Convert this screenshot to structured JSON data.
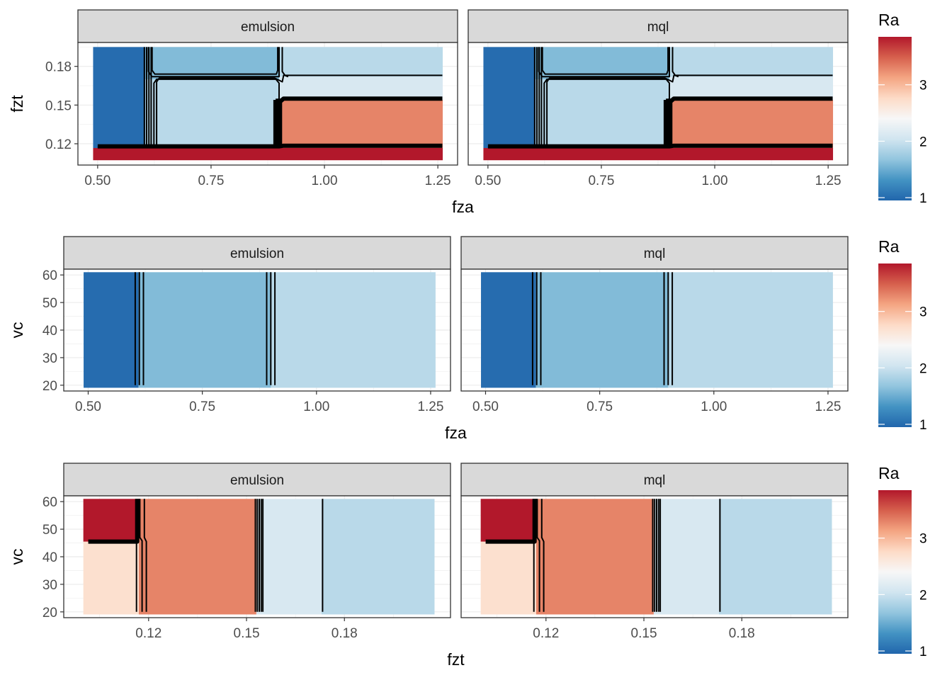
{
  "chart_data": [
    {
      "type": "heatmap",
      "xlabel": "fza",
      "ylabel": "fzt",
      "facets": [
        "emulsion",
        "mql"
      ],
      "xlim": [
        0.4565,
        1.2935
      ],
      "ylim": [
        0.1035,
        0.1985
      ],
      "x_ticks": [
        0.5,
        0.75,
        1.0,
        1.25
      ],
      "x_tick_labels": [
        "0.50",
        "0.75",
        "1.00",
        "1.25"
      ],
      "y_ticks": [
        0.12,
        0.15,
        0.18
      ],
      "y_tick_labels": [
        "0.12",
        "0.15",
        "0.18"
      ],
      "cells": [
        {
          "x": [
            0.49,
            0.605
          ],
          "y": [
            0.1167,
            0.195
          ],
          "Ra": 1.0
        },
        {
          "x": [
            0.605,
            0.9
          ],
          "y": [
            0.17,
            0.195
          ],
          "Ra": 1.6
        },
        {
          "x": [
            0.605,
            0.9
          ],
          "y": [
            0.1167,
            0.17
          ],
          "Ra": 1.9
        },
        {
          "x": [
            0.9,
            1.26
          ],
          "y": [
            0.172,
            0.195
          ],
          "Ra": 1.9
        },
        {
          "x": [
            0.9,
            1.26
          ],
          "y": [
            0.154,
            0.172
          ],
          "Ra": 2.1
        },
        {
          "x": [
            0.9,
            1.26
          ],
          "y": [
            0.1167,
            0.154
          ],
          "Ra": 3.3
        },
        {
          "x": [
            0.49,
            1.26
          ],
          "y": [
            0.1075,
            0.1167
          ],
          "Ra": 3.85
        }
      ],
      "contours": [
        {
          "points": [
            [
              0.603,
              0.195
            ],
            [
              0.603,
              0.117
            ]
          ],
          "width": 2
        },
        {
          "points": [
            [
              0.608,
              0.195
            ],
            [
              0.608,
              0.117
            ]
          ],
          "width": 2
        },
        {
          "points": [
            [
              0.613,
              0.195
            ],
            [
              0.613,
              0.117
            ]
          ],
          "width": 2
        },
        {
          "points": [
            [
              0.618,
              0.195
            ],
            [
              0.618,
              0.117
            ]
          ],
          "width": 2
        },
        {
          "points": [
            [
              0.612,
              0.195
            ],
            [
              0.612,
              0.176
            ],
            [
              0.62,
              0.172
            ],
            [
              0.9,
              0.172
            ],
            [
              0.9,
              0.195
            ]
          ],
          "width": 2
        },
        {
          "points": [
            [
              0.62,
              0.195
            ],
            [
              0.62,
              0.177
            ],
            [
              0.626,
              0.174
            ],
            [
              0.894,
              0.174
            ],
            [
              0.897,
              0.177
            ],
            [
              0.897,
              0.195
            ]
          ],
          "width": 2
        },
        {
          "points": [
            [
              0.624,
              0.119
            ],
            [
              0.624,
              0.167
            ],
            [
              0.63,
              0.17
            ],
            [
              0.893,
              0.17
            ],
            [
              0.9,
              0.167
            ],
            [
              0.9,
              0.118
            ]
          ],
          "width": 2
        },
        {
          "points": [
            [
              0.63,
              0.117
            ],
            [
              0.63,
              0.168
            ],
            [
              0.636,
              0.171
            ],
            [
              0.89,
              0.171
            ],
            [
              0.907,
              0.168
            ],
            [
              0.91,
              0.173
            ],
            [
              1.26,
              0.173
            ]
          ],
          "width": 2
        },
        {
          "points": [
            [
              0.907,
              0.195
            ],
            [
              0.907,
              0.176
            ],
            [
              0.913,
              0.173
            ],
            [
              0.92,
              0.172
            ]
          ],
          "width": 2
        },
        {
          "points": [
            [
              0.892,
              0.154
            ],
            [
              0.892,
              0.118
            ]
          ],
          "width": 6
        },
        {
          "points": [
            [
              0.897,
              0.155
            ],
            [
              0.897,
              0.118
            ]
          ],
          "width": 6
        },
        {
          "points": [
            [
              0.902,
              0.155
            ],
            [
              0.902,
              0.118
            ]
          ],
          "width": 6
        },
        {
          "points": [
            [
              0.9,
              0.152
            ],
            [
              0.91,
              0.155
            ],
            [
              1.26,
              0.155
            ]
          ],
          "width": 6
        },
        {
          "points": [
            [
              0.5,
              0.118
            ],
            [
              0.9,
              0.118
            ],
            [
              0.91,
              0.1185
            ],
            [
              1.26,
              0.1185
            ]
          ],
          "width": 6
        },
        {
          "points": [
            [
              0.5,
              0.1175
            ],
            [
              0.9,
              0.1175
            ],
            [
              1.26,
              0.1175
            ]
          ],
          "width": 2
        }
      ]
    },
    {
      "type": "heatmap",
      "xlabel": "fza",
      "ylabel": "vc",
      "facets": [
        "emulsion",
        "mql"
      ],
      "xlim": [
        0.4465,
        1.2935
      ],
      "ylim": [
        17.9,
        62.1
      ],
      "x_ticks": [
        0.5,
        0.75,
        1.0,
        1.25
      ],
      "x_tick_labels": [
        "0.50",
        "0.75",
        "1.00",
        "1.25"
      ],
      "y_ticks": [
        20,
        30,
        40,
        50,
        60
      ],
      "y_tick_labels": [
        "20",
        "30",
        "40",
        "50",
        "60"
      ],
      "cells": [
        {
          "x": [
            0.49,
            0.61
          ],
          "y": [
            19.2,
            61.0
          ],
          "Ra": 1.0
        },
        {
          "x": [
            0.61,
            0.9
          ],
          "y": [
            19.2,
            61.0
          ],
          "Ra": 1.6
        },
        {
          "x": [
            0.9,
            1.26
          ],
          "y": [
            19.2,
            61.0
          ],
          "Ra": 1.9
        }
      ],
      "contours": [
        {
          "points": [
            [
              0.603,
              61.0
            ],
            [
              0.603,
              20.0
            ]
          ],
          "width": 2
        },
        {
          "points": [
            [
              0.612,
              61.0
            ],
            [
              0.612,
              20.0
            ]
          ],
          "width": 2
        },
        {
          "points": [
            [
              0.621,
              61.0
            ],
            [
              0.621,
              20.0
            ]
          ],
          "width": 2
        },
        {
          "points": [
            [
              0.891,
              61.0
            ],
            [
              0.891,
              20.0
            ]
          ],
          "width": 2
        },
        {
          "points": [
            [
              0.9,
              61.0
            ],
            [
              0.9,
              20.0
            ]
          ],
          "width": 2
        },
        {
          "points": [
            [
              0.909,
              61.0
            ],
            [
              0.909,
              20.0
            ]
          ],
          "width": 2
        }
      ]
    },
    {
      "type": "heatmap",
      "xlabel": "fzt",
      "ylabel": "vc",
      "facets": [
        "emulsion",
        "mql"
      ],
      "xlim": [
        0.094,
        0.2125
      ],
      "ylim": [
        17.9,
        62.1
      ],
      "x_ticks": [
        0.12,
        0.15,
        0.18
      ],
      "x_tick_labels": [
        "0.12",
        "0.15",
        "0.18"
      ],
      "y_ticks": [
        20,
        30,
        40,
        50,
        60
      ],
      "y_tick_labels": [
        "20",
        "30",
        "40",
        "50",
        "60"
      ],
      "cells": [
        {
          "x": [
            0.1,
            0.117
          ],
          "y": [
            45.5,
            61.0
          ],
          "Ra": 3.85
        },
        {
          "x": [
            0.1,
            0.117
          ],
          "y": [
            19.2,
            45.5
          ],
          "Ra": 2.7
        },
        {
          "x": [
            0.117,
            0.153
          ],
          "y": [
            19.2,
            61.0
          ],
          "Ra": 3.3
        },
        {
          "x": [
            0.153,
            0.173
          ],
          "y": [
            19.2,
            61.0
          ],
          "Ra": 2.1
        },
        {
          "x": [
            0.173,
            0.2075
          ],
          "y": [
            19.2,
            61.0
          ],
          "Ra": 1.9
        }
      ],
      "contours": [
        {
          "points": [
            [
              0.1015,
              45.5
            ],
            [
              0.1165,
              45.5
            ],
            [
              0.1165,
              61.0
            ]
          ],
          "width": 6
        },
        {
          "points": [
            [
              0.1163,
              45.0
            ],
            [
              0.1163,
              20.0
            ]
          ],
          "width": 2
        },
        {
          "points": [
            [
              0.1173,
              61.0
            ],
            [
              0.1173,
              47.0
            ],
            [
              0.118,
              45.8
            ],
            [
              0.118,
              20.0
            ]
          ],
          "width": 2
        },
        {
          "points": [
            [
              0.1187,
              61.0
            ],
            [
              0.1187,
              47.0
            ],
            [
              0.1193,
              45.5
            ],
            [
              0.1193,
              20.0
            ]
          ],
          "width": 2
        },
        {
          "points": [
            [
              0.1527,
              61.0
            ],
            [
              0.1527,
              20.0
            ]
          ],
          "width": 2
        },
        {
          "points": [
            [
              0.1533,
              61.0
            ],
            [
              0.1533,
              20.0
            ]
          ],
          "width": 2
        },
        {
          "points": [
            [
              0.1539,
              61.0
            ],
            [
              0.1539,
              20.0
            ]
          ],
          "width": 2
        },
        {
          "points": [
            [
              0.1545,
              61.0
            ],
            [
              0.1545,
              20.0
            ]
          ],
          "width": 2
        },
        {
          "points": [
            [
              0.155,
              61.0
            ],
            [
              0.155,
              20.0
            ]
          ],
          "width": 2
        },
        {
          "points": [
            [
              0.1733,
              61.0
            ],
            [
              0.1733,
              20.0
            ]
          ],
          "width": 2
        }
      ]
    }
  ],
  "legend": {
    "title": "Ra",
    "range": [
      0.95,
      3.85
    ],
    "ticks": [
      1,
      2,
      3
    ],
    "tick_labels": [
      "1",
      "2",
      "3"
    ],
    "colors": [
      "#2166ac",
      "#4393c3",
      "#92c5de",
      "#d1e5f0",
      "#f7f7f7",
      "#fddbc7",
      "#f4a582",
      "#d6604d",
      "#b2182b"
    ]
  }
}
